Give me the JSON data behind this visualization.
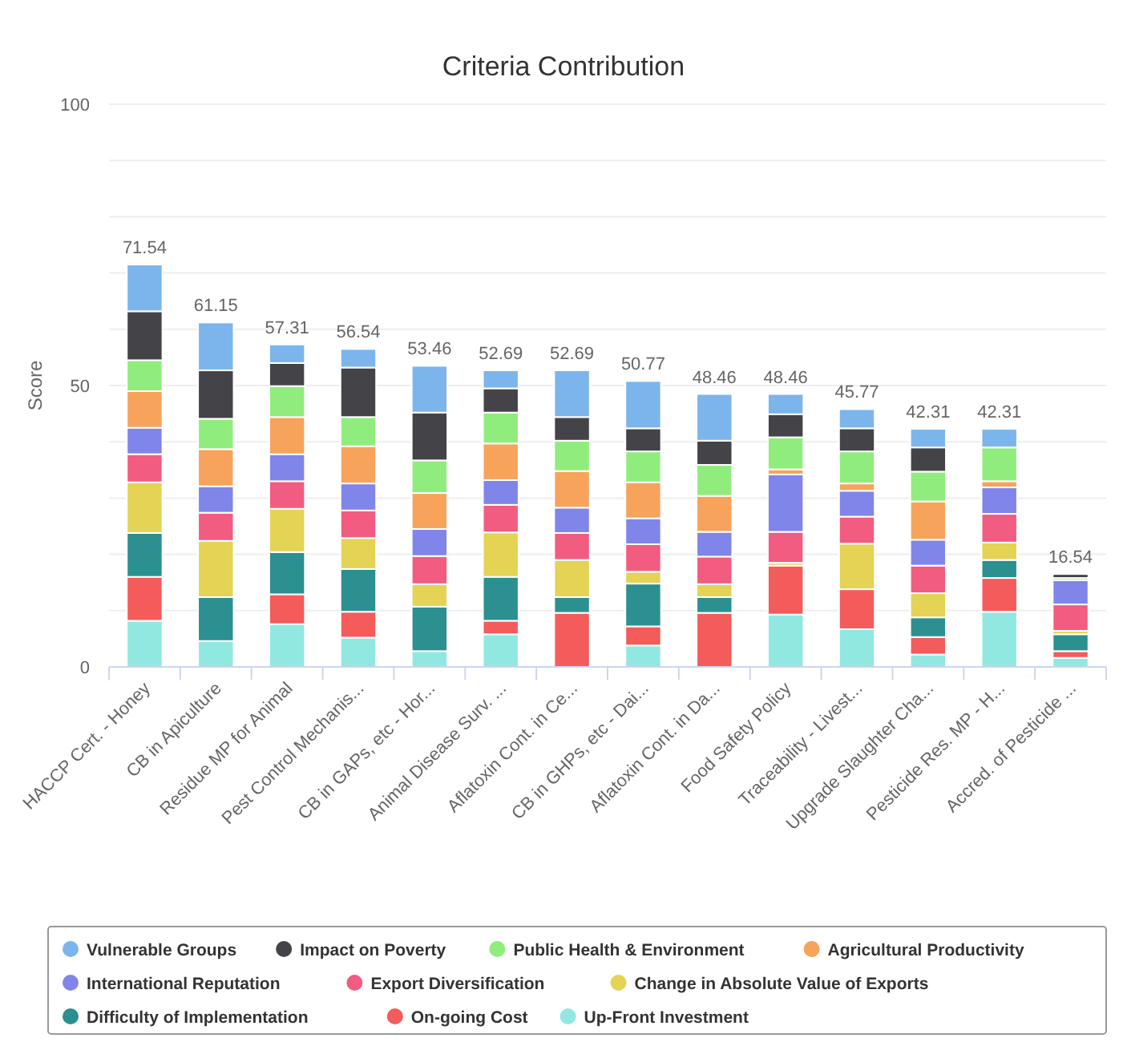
{
  "chart_data": {
    "type": "bar",
    "stacked": true,
    "title": "Criteria Contribution",
    "ylabel": "Score",
    "categories": [
      "HACCP Cert. - Honey",
      "CB in Apiculture",
      "Residue MP for Animal",
      "Pest Control Mechanis...",
      "CB in GAPs, etc - Hor...",
      "Animal Disease Surv. ...",
      "Aflatoxin Cont. in Ce...",
      "CB in GHPs, etc - Dai...",
      "Aflatoxin Cont. in Da...",
      "Food Safety Policy",
      "Traceability - Livest...",
      "Upgrade Slaughter Cha...",
      "Pesticide Res. MP - H...",
      "Accred. of Pesticide ..."
    ],
    "series": [
      {
        "name": "Up-Front Investment",
        "color": "#91e8e1",
        "values": [
          8.2,
          4.6,
          7.6,
          5.2,
          2.8,
          5.8,
          0,
          3.8,
          0,
          9.3,
          6.7,
          2.2,
          9.8,
          1.6
        ]
      },
      {
        "name": "On-going Cost",
        "color": "#f45b5b",
        "values": [
          7.8,
          0,
          5.3,
          4.6,
          0,
          2.4,
          9.6,
          3.4,
          9.6,
          8.7,
          7.1,
          3.1,
          6.0,
          1.2
        ]
      },
      {
        "name": "Difficulty of Implementation",
        "color": "#2b908f",
        "values": [
          7.8,
          7.8,
          7.5,
          7.6,
          7.9,
          7.8,
          2.8,
          7.6,
          2.8,
          0,
          0,
          3.5,
          3.2,
          3.0
        ]
      },
      {
        "name": "Change in Absolute Value of Exports",
        "color": "#e4d354",
        "values": [
          9.0,
          10.0,
          7.7,
          5.5,
          4.0,
          7.9,
          6.6,
          2.1,
          2.3,
          0.5,
          8.1,
          4.3,
          3.1,
          0.6
        ]
      },
      {
        "name": "Export Diversification",
        "color": "#f15c80",
        "values": [
          5.0,
          5.0,
          4.9,
          4.9,
          5.0,
          4.9,
          4.8,
          4.9,
          4.9,
          5.5,
          4.8,
          4.9,
          5.1,
          4.7
        ]
      },
      {
        "name": "International Reputation",
        "color": "#8085e9",
        "values": [
          4.7,
          4.7,
          4.8,
          4.8,
          4.8,
          4.4,
          4.5,
          4.6,
          4.4,
          10.2,
          4.6,
          4.6,
          4.7,
          4.3
        ]
      },
      {
        "name": "Agricultural Productivity",
        "color": "#f7a35c",
        "values": [
          6.5,
          6.6,
          6.6,
          6.6,
          6.4,
          6.5,
          6.5,
          6.4,
          6.4,
          0.9,
          1.3,
          6.8,
          1.1,
          0
        ]
      },
      {
        "name": "Public Health & Environment",
        "color": "#90ed7d",
        "values": [
          5.5,
          5.4,
          5.5,
          5.2,
          5.8,
          5.5,
          5.4,
          5.5,
          5.5,
          5.7,
          5.7,
          5.3,
          6.0,
          0.4
        ]
      },
      {
        "name": "Impact on Poverty",
        "color": "#434348",
        "values": [
          8.7,
          8.6,
          4.1,
          8.8,
          8.5,
          4.3,
          4.2,
          4.1,
          4.3,
          4.1,
          4.1,
          4.3,
          0,
          0.7
        ]
      },
      {
        "name": "Vulnerable Groups",
        "color": "#7cb5ec",
        "values": [
          8.3,
          8.5,
          3.3,
          3.3,
          8.3,
          3.2,
          8.3,
          8.4,
          8.3,
          3.6,
          3.4,
          3.3,
          3.3,
          0
        ]
      }
    ],
    "totals": [
      "71.54",
      "61.15",
      "57.31",
      "56.54",
      "53.46",
      "52.69",
      "52.69",
      "50.77",
      "48.46",
      "48.46",
      "45.77",
      "42.31",
      "42.31",
      "16.54"
    ],
    "ylim": [
      0,
      100
    ],
    "yticks": [
      0,
      {
        "value": 10,
        "label": null
      },
      {
        "value": 20,
        "label": null
      },
      {
        "value": 30,
        "label": null
      },
      {
        "value": 40,
        "label": null
      },
      50,
      {
        "value": 60,
        "label": null
      },
      {
        "value": 70,
        "label": null
      },
      {
        "value": 80,
        "label": null
      },
      {
        "value": 90,
        "label": null
      },
      100
    ],
    "grid": true,
    "legend": "bottom"
  }
}
